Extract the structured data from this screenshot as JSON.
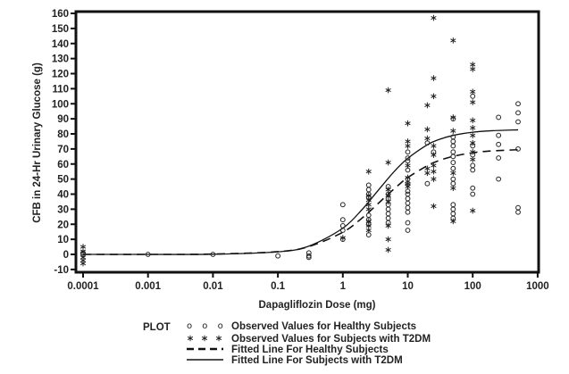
{
  "chart_data": {
    "type": "scatter",
    "xlabel": "Dapagliflozin Dose (mg)",
    "ylabel": "CFB in 24-Hr Urinary Glucose (g)",
    "x_scale": "log",
    "xlim": [
      0.0001,
      1000
    ],
    "ylim": [
      -10,
      160
    ],
    "x_ticks": [
      "0.0001",
      "0.001",
      "0.01",
      "0.1",
      "1",
      "10",
      "100",
      "1000"
    ],
    "y_ticks": [
      "-10",
      "0",
      "10",
      "20",
      "30",
      "40",
      "50",
      "60",
      "70",
      "80",
      "90",
      "100",
      "110",
      "120",
      "130",
      "140",
      "150",
      "160"
    ],
    "grid": false,
    "legend": {
      "title": "PLOT",
      "position": "bottom",
      "entries": [
        {
          "symbol": "o o o",
          "label": "Observed Values for Healthy Subjects"
        },
        {
          "symbol": "* * *",
          "label": "Observed Values for Subjects with T2DM"
        },
        {
          "symbol": "dashed-line",
          "label": "Fitted Line For Healthy Subjects"
        },
        {
          "symbol": "solid-line",
          "label": "Fitted Line For Subjects with T2DM"
        }
      ]
    },
    "series": [
      {
        "name": "Observed Values for Healthy Subjects",
        "marker": "circle",
        "points": [
          [
            0.0001,
            0
          ],
          [
            0.0001,
            1
          ],
          [
            0.001,
            0
          ],
          [
            0.01,
            0
          ],
          [
            0.1,
            -1
          ],
          [
            0.3,
            1
          ],
          [
            0.3,
            -1
          ],
          [
            0.3,
            -2
          ],
          [
            1,
            33
          ],
          [
            1,
            23
          ],
          [
            1,
            19
          ],
          [
            1,
            16
          ],
          [
            1,
            10
          ],
          [
            2.5,
            46
          ],
          [
            2.5,
            43
          ],
          [
            2.5,
            40
          ],
          [
            2.5,
            38
          ],
          [
            2.5,
            26
          ],
          [
            2.5,
            23
          ],
          [
            2.5,
            20
          ],
          [
            2.5,
            13
          ],
          [
            5,
            45
          ],
          [
            5,
            40
          ],
          [
            5,
            37
          ],
          [
            5,
            33
          ],
          [
            5,
            30
          ],
          [
            5,
            27
          ],
          [
            5,
            24
          ],
          [
            5,
            21
          ],
          [
            10,
            68
          ],
          [
            10,
            64
          ],
          [
            10,
            62
          ],
          [
            10,
            56
          ],
          [
            10,
            50
          ],
          [
            10,
            47
          ],
          [
            10,
            42
          ],
          [
            10,
            40
          ],
          [
            10,
            37
          ],
          [
            10,
            34
          ],
          [
            10,
            31
          ],
          [
            10,
            28
          ],
          [
            10,
            21
          ],
          [
            10,
            16
          ],
          [
            20,
            74
          ],
          [
            20,
            47
          ],
          [
            25,
            68
          ],
          [
            50,
            90
          ],
          [
            50,
            78
          ],
          [
            50,
            75
          ],
          [
            50,
            72
          ],
          [
            50,
            68
          ],
          [
            50,
            65
          ],
          [
            50,
            61
          ],
          [
            50,
            57
          ],
          [
            50,
            50
          ],
          [
            50,
            47
          ],
          [
            50,
            33
          ],
          [
            50,
            30
          ],
          [
            50,
            27
          ],
          [
            50,
            24
          ],
          [
            100,
            105
          ],
          [
            100,
            72
          ],
          [
            100,
            66
          ],
          [
            100,
            59
          ],
          [
            100,
            56
          ],
          [
            100,
            44
          ],
          [
            100,
            40
          ],
          [
            250,
            91
          ],
          [
            250,
            79
          ],
          [
            250,
            73
          ],
          [
            250,
            64
          ],
          [
            250,
            50
          ],
          [
            500,
            100
          ],
          [
            500,
            94
          ],
          [
            500,
            88
          ],
          [
            500,
            70
          ],
          [
            500,
            31
          ],
          [
            500,
            28
          ]
        ]
      },
      {
        "name": "Observed Values for Subjects with T2DM",
        "marker": "asterisk",
        "points": [
          [
            0.0001,
            5
          ],
          [
            0.0001,
            2
          ],
          [
            0.0001,
            -2
          ],
          [
            0.0001,
            -4
          ],
          [
            0.0001,
            -6
          ],
          [
            1,
            11
          ],
          [
            2.5,
            55
          ],
          [
            2.5,
            39
          ],
          [
            2.5,
            36
          ],
          [
            2.5,
            33
          ],
          [
            2.5,
            30
          ],
          [
            2.5,
            22
          ],
          [
            2.5,
            19
          ],
          [
            2.5,
            16
          ],
          [
            5,
            109
          ],
          [
            5,
            61
          ],
          [
            5,
            43
          ],
          [
            5,
            39
          ],
          [
            5,
            35
          ],
          [
            5,
            19
          ],
          [
            5,
            10
          ],
          [
            5,
            3
          ],
          [
            10,
            87
          ],
          [
            10,
            75
          ],
          [
            10,
            72
          ],
          [
            10,
            59
          ],
          [
            10,
            51
          ],
          [
            10,
            47
          ],
          [
            10,
            45
          ],
          [
            20,
            99
          ],
          [
            20,
            83
          ],
          [
            20,
            77
          ],
          [
            20,
            57
          ],
          [
            20,
            54
          ],
          [
            25,
            157
          ],
          [
            25,
            117
          ],
          [
            25,
            105
          ],
          [
            25,
            72
          ],
          [
            25,
            66
          ],
          [
            25,
            59
          ],
          [
            25,
            55
          ],
          [
            25,
            50
          ],
          [
            25,
            32
          ],
          [
            50,
            142
          ],
          [
            50,
            91
          ],
          [
            50,
            82
          ],
          [
            50,
            54
          ],
          [
            50,
            44
          ],
          [
            50,
            22
          ],
          [
            100,
            126
          ],
          [
            100,
            123
          ],
          [
            100,
            108
          ],
          [
            100,
            101
          ],
          [
            100,
            89
          ],
          [
            100,
            84
          ],
          [
            100,
            79
          ],
          [
            100,
            74
          ],
          [
            100,
            68
          ],
          [
            100,
            63
          ],
          [
            100,
            29
          ]
        ]
      },
      {
        "name": "Fitted Line For Healthy Subjects",
        "style": "dashed",
        "points": [
          [
            0.0001,
            0
          ],
          [
            0.001,
            0
          ],
          [
            0.01,
            0.2
          ],
          [
            0.1,
            1.8
          ],
          [
            0.3,
            5.2
          ],
          [
            1,
            14.7
          ],
          [
            2,
            24.3
          ],
          [
            3,
            31.1
          ],
          [
            5,
            40
          ],
          [
            7,
            45.6
          ],
          [
            10,
            51
          ],
          [
            20,
            58.9
          ],
          [
            30,
            62.2
          ],
          [
            50,
            65.1
          ],
          [
            100,
            67.5
          ],
          [
            200,
            68.7
          ],
          [
            500,
            69.5
          ]
        ]
      },
      {
        "name": "Fitted Line For Subjects with T2DM",
        "style": "solid",
        "points": [
          [
            0.0001,
            0
          ],
          [
            0.001,
            0
          ],
          [
            0.01,
            0.1
          ],
          [
            0.1,
            1.7
          ],
          [
            0.3,
            5.5
          ],
          [
            1,
            17.4
          ],
          [
            2,
            30
          ],
          [
            3,
            39
          ],
          [
            5,
            50.5
          ],
          [
            7,
            57.5
          ],
          [
            10,
            63.8
          ],
          [
            20,
            72.8
          ],
          [
            30,
            76.2
          ],
          [
            50,
            79
          ],
          [
            100,
            81.1
          ],
          [
            200,
            82.1
          ],
          [
            500,
            82.7
          ]
        ]
      }
    ]
  }
}
